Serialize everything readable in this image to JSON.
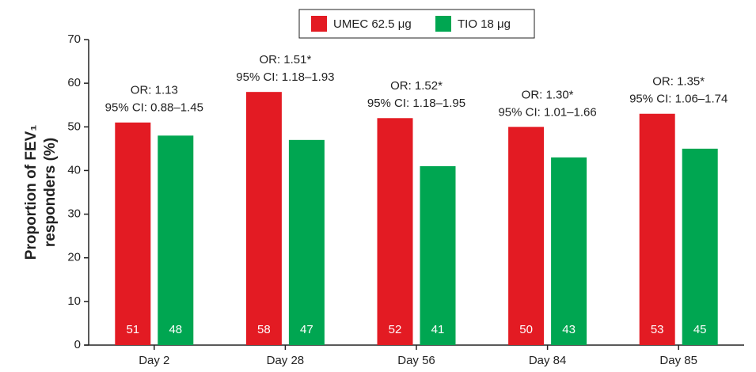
{
  "chart_data": {
    "type": "bar",
    "categories": [
      "Day 2",
      "Day 28",
      "Day 56",
      "Day 84",
      "Day 85"
    ],
    "series": [
      {
        "name": "UMEC 62.5 μg",
        "color": "#e31b23",
        "values": [
          51,
          58,
          52,
          50,
          53
        ]
      },
      {
        "name": "TIO 18 μg",
        "color": "#00a651",
        "values": [
          48,
          47,
          41,
          43,
          45
        ]
      }
    ],
    "annotations": [
      [
        "OR: 1.13",
        "95% CI: 0.88–1.45"
      ],
      [
        "OR: 1.51*",
        "95% CI: 1.18–1.93"
      ],
      [
        "OR: 1.52*",
        "95% CI: 1.18–1.95"
      ],
      [
        "OR: 1.30*",
        "95% CI: 1.01–1.66"
      ],
      [
        "OR: 1.35*",
        "95% CI: 1.06–1.74"
      ]
    ],
    "ylabel": [
      "Proportion of FEV₁",
      "responders (%)"
    ],
    "ylim": [
      0,
      70
    ],
    "yticks": [
      0,
      10,
      20,
      30,
      40,
      50,
      60,
      70
    ],
    "legend": "top"
  }
}
